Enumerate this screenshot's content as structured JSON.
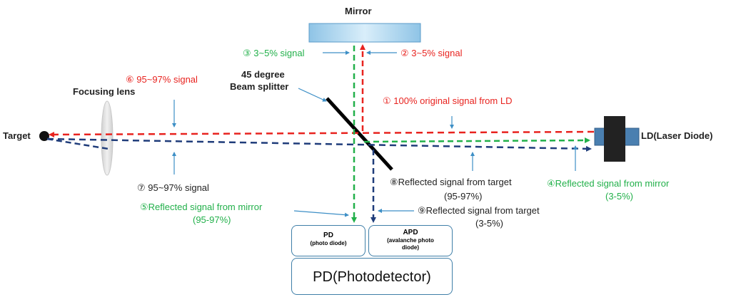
{
  "colors": {
    "red_path": "#e8231f",
    "green_path": "#22b04a",
    "navy_path": "#1f3c7a",
    "pointer": "#3d8fc6",
    "box_border": "#3f7fa8"
  },
  "labels": {
    "mirror": "Mirror",
    "beam_splitter_line1": "45 degree",
    "beam_splitter_line2": "Beam splitter",
    "focusing_lens": "Focusing lens",
    "target": "Target",
    "laser_diode": "LD(Laser Diode)",
    "sig1": "① 100% original signal from LD",
    "sig2": "② 3~5% signal",
    "sig3": "③ 3~5% signal",
    "sig4_line1": "④Reflected signal from mirror",
    "sig4_line2": "(3-5%)",
    "sig5_line1": "⑤Reflected signal from mirror",
    "sig5_line2": "(95-97%)",
    "sig6": "⑥ 95~97% signal",
    "sig7": "⑦ 95~97% signal",
    "sig8_line1": "⑧Reflected signal from target",
    "sig8_line2": "(95-97%)",
    "sig9_line1": "⑨Reflected signal from target",
    "sig9_line2": "(3-5%)"
  },
  "boxes": {
    "pd_title": "PD",
    "pd_sub": "(photo diode)",
    "apd_title": "APD",
    "apd_sub": "(avalanche photo diode)",
    "photodetector": "PD(Photodetector)"
  }
}
